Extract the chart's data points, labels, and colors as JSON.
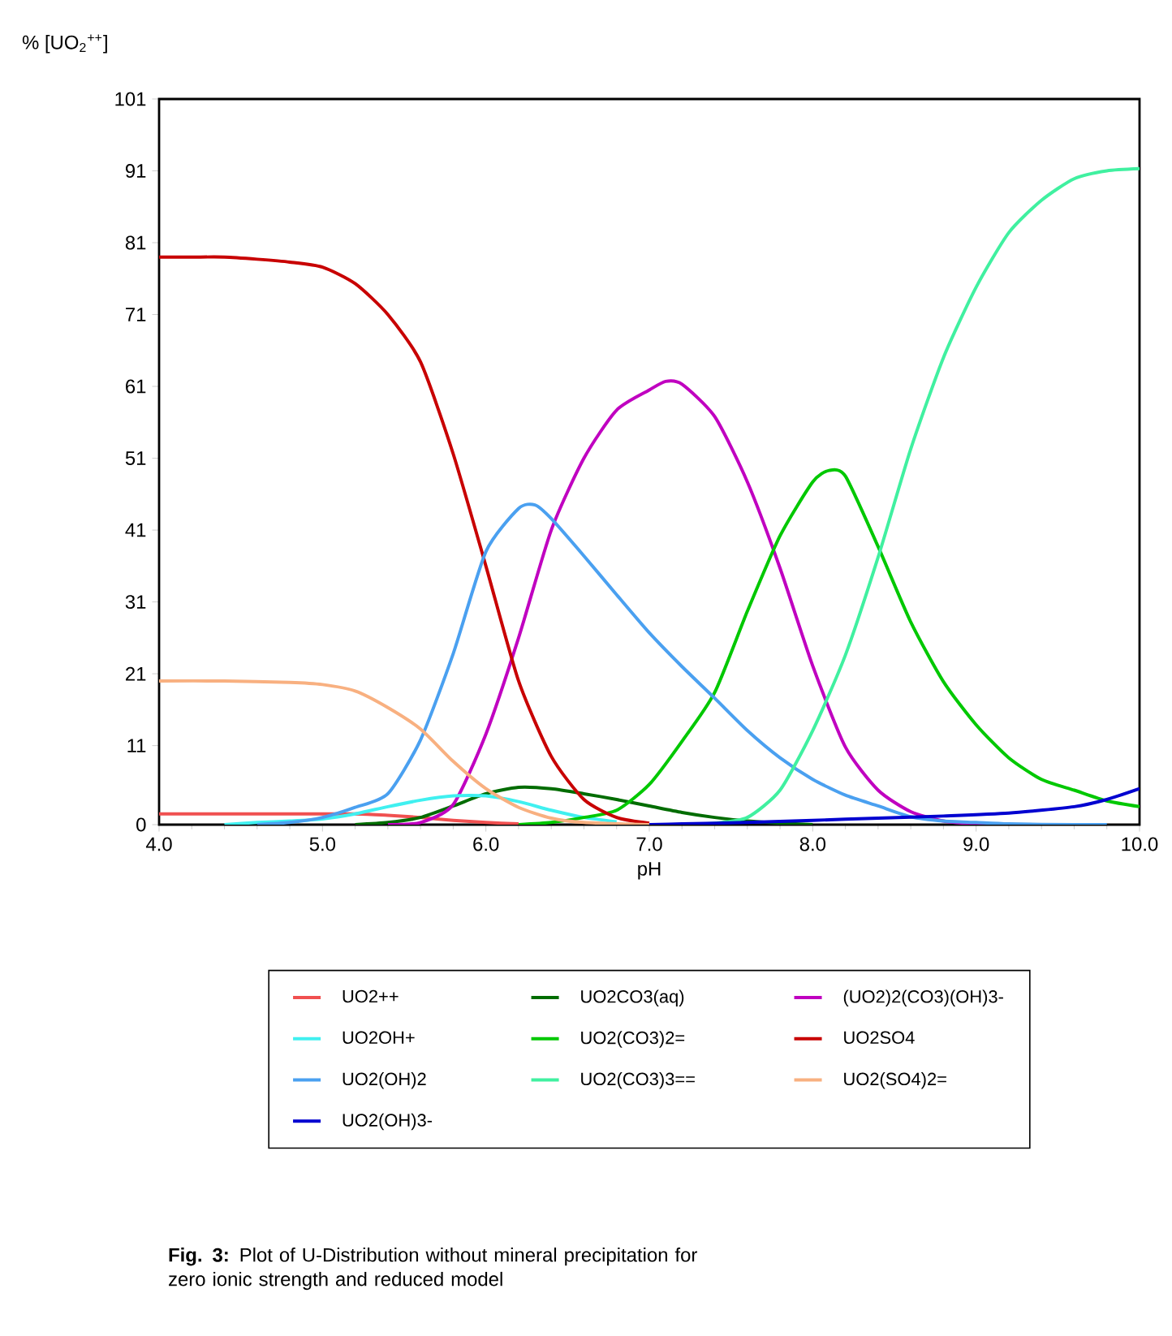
{
  "chart_data": {
    "type": "line",
    "xlabel": "pH",
    "ylabel": "% [UO$_{2}$$^{++}$]",
    "annotations": [
      "**Fig. 3:** Plot of U-Distribution without mineral precipitation for zero ionic strength and reduced model"
    ],
    "xlim": [
      4.0,
      10.0
    ],
    "ylim": [
      0,
      101
    ],
    "xticks": [
      {
        "value": 4,
        "label": "4.0"
      },
      {
        "value": 5,
        "label": "5.0"
      },
      {
        "value": 6,
        "label": "6.0"
      },
      {
        "value": 7,
        "label": "7.0"
      },
      {
        "value": 8,
        "label": "8.0"
      },
      {
        "value": 9,
        "label": "9.0"
      },
      {
        "value": 10,
        "label": "10.0"
      }
    ],
    "yticks": [
      0,
      11,
      21,
      31,
      41,
      51,
      61,
      71,
      81,
      91,
      101
    ],
    "legend": "bottom",
    "grid": false,
    "series": [
      {
        "name": "UO2++",
        "color": "#f05050",
        "x": [
          4.0,
          4.4,
          4.8,
          5.2,
          5.4,
          5.6,
          5.8,
          6.0,
          6.2
        ],
        "values": [
          1.5,
          1.5,
          1.5,
          1.5,
          1.3,
          1.0,
          0.6,
          0.3,
          0.1
        ]
      },
      {
        "name": "UO2CO3(aq)",
        "color": "#006c00",
        "x": [
          5.2,
          5.4,
          5.6,
          5.8,
          6.0,
          6.2,
          6.4,
          6.6,
          6.8,
          7.0,
          7.2,
          7.4,
          7.6,
          7.8,
          8.0
        ],
        "values": [
          0,
          0.3,
          1.0,
          2.6,
          4.3,
          5.2,
          5.0,
          4.3,
          3.5,
          2.6,
          1.7,
          1.0,
          0.5,
          0.2,
          0
        ]
      },
      {
        "name": "(UO2)2(CO3)(OH)3-",
        "color": "#c000c0",
        "x": [
          5.4,
          5.6,
          5.8,
          6.0,
          6.2,
          6.4,
          6.6,
          6.8,
          7.0,
          7.1,
          7.2,
          7.4,
          7.6,
          7.8,
          8.0,
          8.2,
          8.4,
          8.6,
          8.8,
          9.0,
          9.2
        ],
        "values": [
          0,
          0.3,
          2.8,
          12.6,
          26,
          41,
          51,
          57.7,
          60.5,
          61.7,
          61.3,
          56.8,
          47.7,
          35.7,
          22.1,
          10.8,
          4.8,
          1.8,
          0.5,
          0.1,
          0
        ]
      },
      {
        "name": "UO2OH+",
        "color": "#40f0f0",
        "x": [
          4.4,
          4.6,
          4.8,
          5.0,
          5.2,
          5.4,
          5.6,
          5.8,
          6.0,
          6.2,
          6.4,
          6.6,
          6.8
        ],
        "values": [
          0,
          0.3,
          0.5,
          0.8,
          1.5,
          2.5,
          3.4,
          4.0,
          4.0,
          3.2,
          2.0,
          1.0,
          0.4
        ]
      },
      {
        "name": "UO2(CO3)2=",
        "color": "#00c800",
        "x": [
          6.2,
          6.4,
          6.6,
          6.8,
          7.0,
          7.2,
          7.4,
          7.6,
          7.8,
          8.0,
          8.1,
          8.2,
          8.4,
          8.6,
          8.8,
          9.0,
          9.2,
          9.4,
          9.6,
          9.8,
          10.0
        ],
        "values": [
          0,
          0.3,
          1.0,
          2.0,
          5.6,
          11.6,
          18.4,
          29.7,
          40.2,
          47.7,
          49.3,
          48.5,
          38.7,
          28.2,
          19.9,
          13.9,
          9.3,
          6.3,
          4.8,
          3.3,
          2.5
        ]
      },
      {
        "name": "UO2SO4",
        "color": "#c80000",
        "x": [
          4.0,
          4.2,
          4.4,
          4.6,
          4.8,
          5.0,
          5.2,
          5.4,
          5.6,
          5.8,
          6.0,
          6.2,
          6.4,
          6.6,
          6.8,
          7.0
        ],
        "values": [
          79,
          79,
          79,
          78.7,
          78.3,
          77.6,
          75.3,
          71,
          64.4,
          51.6,
          36,
          20,
          9.5,
          3.5,
          1.0,
          0.2
        ]
      },
      {
        "name": "UO2(OH)2",
        "color": "#4aa0f0",
        "x": [
          4.6,
          4.8,
          5.0,
          5.2,
          5.4,
          5.6,
          5.8,
          6.0,
          6.2,
          6.3,
          6.4,
          6.6,
          6.8,
          7.0,
          7.2,
          7.4,
          7.6,
          7.8,
          8.0,
          8.2,
          8.4,
          8.6,
          8.8,
          9.0,
          9.2,
          9.6,
          9.8
        ],
        "values": [
          0,
          0.3,
          1.0,
          2.4,
          4.3,
          11.8,
          23.8,
          38,
          44,
          44.5,
          42.6,
          37.4,
          32,
          26.7,
          22,
          17.6,
          13.1,
          9.3,
          6.3,
          4.1,
          2.6,
          1.1,
          0.5,
          0.3,
          0.1,
          0,
          0
        ]
      },
      {
        "name": "UO2(CO3)3==",
        "color": "#40f0a0",
        "x": [
          7.2,
          7.4,
          7.6,
          7.8,
          8.0,
          8.2,
          8.4,
          8.6,
          8.8,
          9.0,
          9.2,
          9.4,
          9.6,
          9.8,
          10.0
        ],
        "values": [
          0,
          0.2,
          1.0,
          4.8,
          13.1,
          23.6,
          37.2,
          52.3,
          65,
          74.8,
          82.4,
          86.9,
          89.9,
          91,
          91.3
        ]
      },
      {
        "name": "UO2(SO4)2=",
        "color": "#f8b080",
        "x": [
          4.0,
          4.4,
          4.8,
          5.0,
          5.2,
          5.4,
          5.6,
          5.8,
          6.0,
          6.2,
          6.4,
          6.6,
          7.0
        ],
        "values": [
          20,
          20,
          19.8,
          19.5,
          18.6,
          16.3,
          13.3,
          8.8,
          5.0,
          2.4,
          0.9,
          0.3,
          0
        ]
      },
      {
        "name": "UO2(OH)3-",
        "color": "#0000d0",
        "x": [
          7.0,
          7.2,
          7.6,
          8.0,
          8.4,
          8.8,
          9.2,
          9.6,
          9.8,
          10.0
        ],
        "values": [
          0,
          0.1,
          0.3,
          0.6,
          0.9,
          1.2,
          1.6,
          2.5,
          3.5,
          5.0
        ]
      }
    ]
  }
}
